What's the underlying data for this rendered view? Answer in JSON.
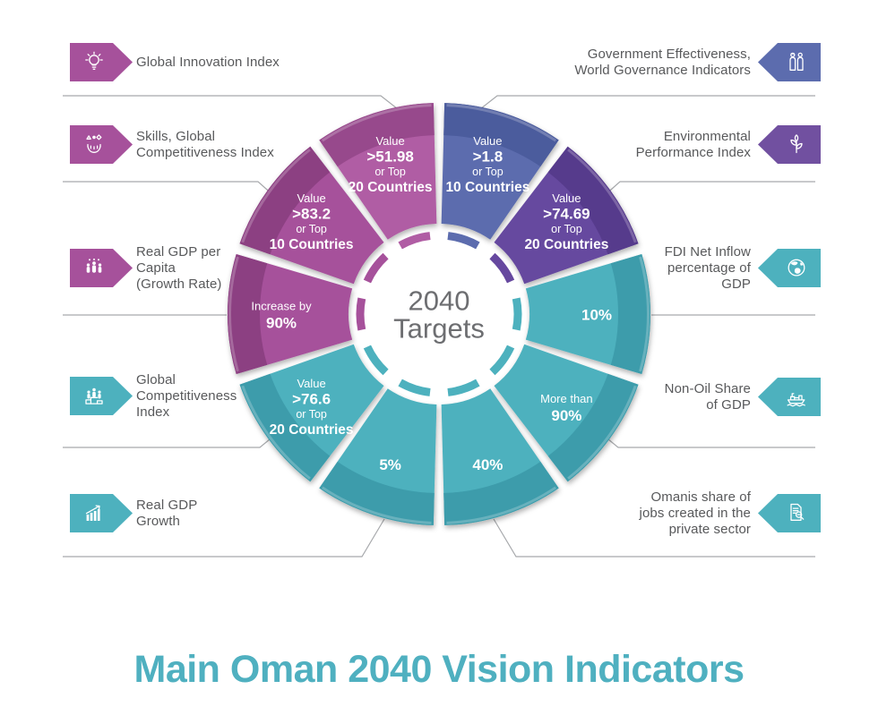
{
  "title": "Main Oman 2040 Vision Indicators",
  "center": {
    "line1": "2040",
    "line2": "Targets"
  },
  "palette": {
    "teal": "#4db1be",
    "teal_rim": "#3e9cab",
    "magenta": "#a6519b",
    "magenta_rim": "#8c3f82",
    "pink": "#b05da4",
    "pink_rim": "#97498c",
    "blue": "#5c6cae",
    "blue_rim": "#4c5c9d",
    "purple": "#66489f",
    "purple_rim": "#563a8c",
    "purple_badge": "#7150a0",
    "title_teal": "#4fb0c0",
    "label_text": "#58595b",
    "line_gray": "#a7a9ac",
    "center_text": "#6d6e71"
  },
  "wheel": {
    "segments": [
      {
        "color": "#5c6cae",
        "rim": "#4c5c9d",
        "lines": [
          "Value",
          ">1.8",
          "or Top",
          "10 Countries"
        ]
      },
      {
        "color": "#66489f",
        "rim": "#563a8c",
        "lines": [
          "Value",
          ">74.69",
          "or Top",
          "20 Countries"
        ]
      },
      {
        "color": "#4db1be",
        "rim": "#3e9cab",
        "lines": [
          "10%"
        ]
      },
      {
        "color": "#4db1be",
        "rim": "#3e9cab",
        "lines": [
          "More than",
          "90%"
        ]
      },
      {
        "color": "#4db1be",
        "rim": "#3e9cab",
        "lines": [
          "40%"
        ]
      },
      {
        "color": "#4db1be",
        "rim": "#3e9cab",
        "lines": [
          "5%"
        ]
      },
      {
        "color": "#4db1be",
        "rim": "#3e9cab",
        "lines": [
          "Value",
          ">76.6",
          "or Top",
          "20 Countries"
        ]
      },
      {
        "color": "#a6519b",
        "rim": "#8c3f82",
        "lines": [
          "Increase by",
          "90%"
        ]
      },
      {
        "color": "#a6519b",
        "rim": "#8c3f82",
        "lines": [
          "Value",
          ">83.2",
          "or Top",
          "10 Countries"
        ]
      },
      {
        "color": "#b05da4",
        "rim": "#97498c",
        "lines": [
          "Value",
          ">51.98",
          "or Top",
          "20 Countries"
        ]
      }
    ]
  },
  "left_items": [
    {
      "lines": [
        "Global Innovation Index"
      ],
      "color": "#a6519b",
      "icon": "lightbulb-icon"
    },
    {
      "lines": [
        "Skills, Global",
        "Competitiveness Index"
      ],
      "color": "#a6519b",
      "icon": "skills-icon"
    },
    {
      "lines": [
        "Real GDP per",
        "Capita",
        "(Growth Rate)"
      ],
      "color": "#a6519b",
      "icon": "population-icon"
    },
    {
      "lines": [
        "Global",
        "Competitiveness",
        "Index"
      ],
      "color": "#4db1be",
      "icon": "podium-icon"
    },
    {
      "lines": [
        "Real GDP",
        "Growth"
      ],
      "color": "#4db1be",
      "icon": "growth-chart-icon"
    }
  ],
  "right_items": [
    {
      "lines": [
        "Government Effectiveness,",
        "World Governance Indicators"
      ],
      "color": "#5c6cae",
      "icon": "people-icon"
    },
    {
      "lines": [
        "Environmental",
        "Performance Index"
      ],
      "color": "#7150a0",
      "icon": "plant-icon"
    },
    {
      "lines": [
        "FDI Net Inflow",
        "percentage of",
        "GDP"
      ],
      "color": "#4db1be",
      "icon": "globe-icon"
    },
    {
      "lines": [
        "Non-Oil Share",
        "of GDP"
      ],
      "color": "#4db1be",
      "icon": "ship-icon"
    },
    {
      "lines": [
        "Omanis share of",
        "jobs created in the",
        "private sector"
      ],
      "color": "#4db1be",
      "icon": "document-search-icon"
    }
  ]
}
